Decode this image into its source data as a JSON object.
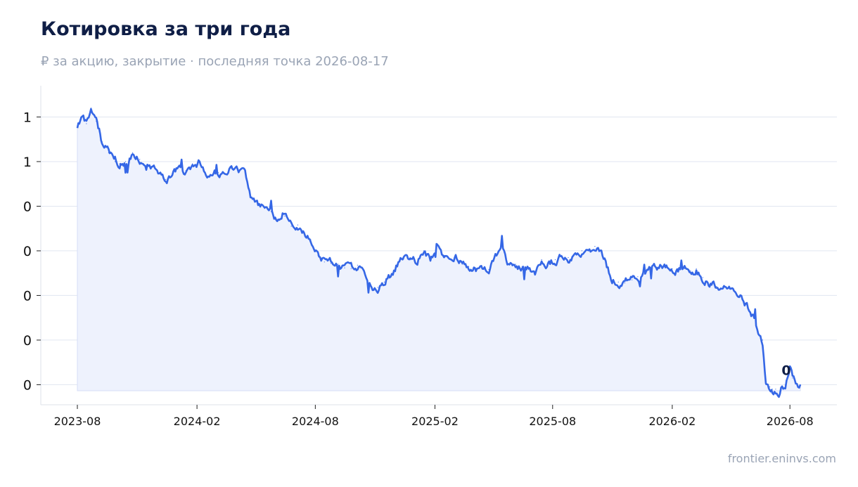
{
  "chart_data": {
    "type": "area",
    "title": "Котировка за три года",
    "subtitle": "₽ за акцию, закрытие · последняя точка 2026-08-17",
    "source": "frontier.eninvs.com",
    "xlabel": "",
    "ylabel": "",
    "x_ticks": [
      "2023-08",
      "2024-02",
      "2024-08",
      "2025-02",
      "2025-08",
      "2026-02",
      "2026-08"
    ],
    "y_tick_labels": [
      "0",
      "0",
      "0",
      "0",
      "0",
      "1",
      "1"
    ],
    "y_tick_values": [
      0.2,
      0.3,
      0.4,
      0.5,
      0.6,
      0.7,
      0.8
    ],
    "ylim": [
      0.155,
      0.87
    ],
    "grid": "horizontal",
    "colors": {
      "line": "#3567e6",
      "fill": "#eef2fd",
      "grid": "#e1e6f0"
    },
    "last_point": {
      "date": "2026-08-17",
      "label": "0"
    },
    "series": [
      {
        "x": [
          "2023-08-01",
          "2023-08-07",
          "2023-08-15",
          "2023-08-22",
          "2023-08-30",
          "2023-09-08",
          "2023-09-18",
          "2023-09-28",
          "2023-10-05",
          "2023-10-14",
          "2023-10-25",
          "2023-11-05",
          "2023-11-15",
          "2023-11-25",
          "2023-12-05",
          "2023-12-15",
          "2023-12-25",
          "2024-01-05",
          "2024-01-15",
          "2024-01-25",
          "2024-02-05",
          "2024-02-15",
          "2024-02-25",
          "2024-03-05",
          "2024-03-15",
          "2024-03-25",
          "2024-04-05",
          "2024-04-15",
          "2024-04-25",
          "2024-05-05",
          "2024-05-15",
          "2024-05-25",
          "2024-06-05",
          "2024-06-15",
          "2024-06-25",
          "2024-07-05",
          "2024-07-15",
          "2024-07-25",
          "2024-08-05",
          "2024-08-15",
          "2024-08-25",
          "2024-09-05",
          "2024-09-15",
          "2024-09-25",
          "2024-10-05",
          "2024-10-15",
          "2024-10-25",
          "2024-11-05",
          "2024-11-15",
          "2024-11-25",
          "2024-12-05",
          "2024-12-15",
          "2024-12-25",
          "2025-01-05",
          "2025-01-15",
          "2025-01-25",
          "2025-02-05",
          "2025-02-15",
          "2025-02-25",
          "2025-03-05",
          "2025-03-15",
          "2025-03-25",
          "2025-04-05",
          "2025-04-15",
          "2025-04-25",
          "2025-05-05",
          "2025-05-15",
          "2025-05-25",
          "2025-06-05",
          "2025-06-15",
          "2025-06-25",
          "2025-07-05",
          "2025-07-15",
          "2025-07-25",
          "2025-08-05",
          "2025-08-15",
          "2025-08-25",
          "2025-09-05",
          "2025-09-15",
          "2025-09-25",
          "2025-10-05",
          "2025-10-15",
          "2025-10-20",
          "2025-10-30",
          "2025-11-10",
          "2025-11-20",
          "2025-12-01",
          "2025-12-10",
          "2025-12-20",
          "2026-01-01",
          "2026-01-10",
          "2026-01-20",
          "2026-02-01",
          "2026-02-10",
          "2026-02-20",
          "2026-03-01",
          "2026-03-10",
          "2026-03-20",
          "2026-04-01",
          "2026-04-10",
          "2026-04-20",
          "2026-05-01",
          "2026-05-10",
          "2026-05-20",
          "2026-05-25",
          "2026-06-01",
          "2026-06-10",
          "2026-06-20",
          "2026-06-25",
          "2026-07-01",
          "2026-07-05",
          "2026-07-10",
          "2026-07-15",
          "2026-07-20",
          "2026-07-25",
          "2026-08-01",
          "2026-08-05",
          "2026-08-10",
          "2026-08-17"
        ],
        "values": [
          0.78,
          0.795,
          0.785,
          0.82,
          0.79,
          0.745,
          0.72,
          0.7,
          0.695,
          0.7,
          0.72,
          0.705,
          0.69,
          0.688,
          0.675,
          0.66,
          0.668,
          0.69,
          0.68,
          0.695,
          0.7,
          0.67,
          0.668,
          0.675,
          0.672,
          0.685,
          0.675,
          0.675,
          0.62,
          0.605,
          0.595,
          0.588,
          0.568,
          0.578,
          0.555,
          0.558,
          0.542,
          0.525,
          0.49,
          0.475,
          0.472,
          0.47,
          0.462,
          0.46,
          0.468,
          0.452,
          0.425,
          0.418,
          0.43,
          0.445,
          0.47,
          0.482,
          0.48,
          0.475,
          0.5,
          0.48,
          0.515,
          0.49,
          0.48,
          0.485,
          0.47,
          0.465,
          0.46,
          0.46,
          0.458,
          0.49,
          0.51,
          0.47,
          0.47,
          0.465,
          0.458,
          0.448,
          0.48,
          0.475,
          0.48,
          0.49,
          0.485,
          0.495,
          0.5,
          0.5,
          0.51,
          0.5,
          0.48,
          0.44,
          0.43,
          0.428,
          0.435,
          0.442,
          0.448,
          0.465,
          0.46,
          0.465,
          0.46,
          0.46,
          0.46,
          0.455,
          0.46,
          0.44,
          0.425,
          0.42,
          0.42,
          0.415,
          0.405,
          0.39,
          0.382,
          0.36,
          0.335,
          0.3,
          0.2,
          0.195,
          0.19,
          0.19,
          0.172,
          0.195,
          0.2,
          0.24,
          0.215,
          0.205,
          0.2
        ]
      }
    ]
  }
}
